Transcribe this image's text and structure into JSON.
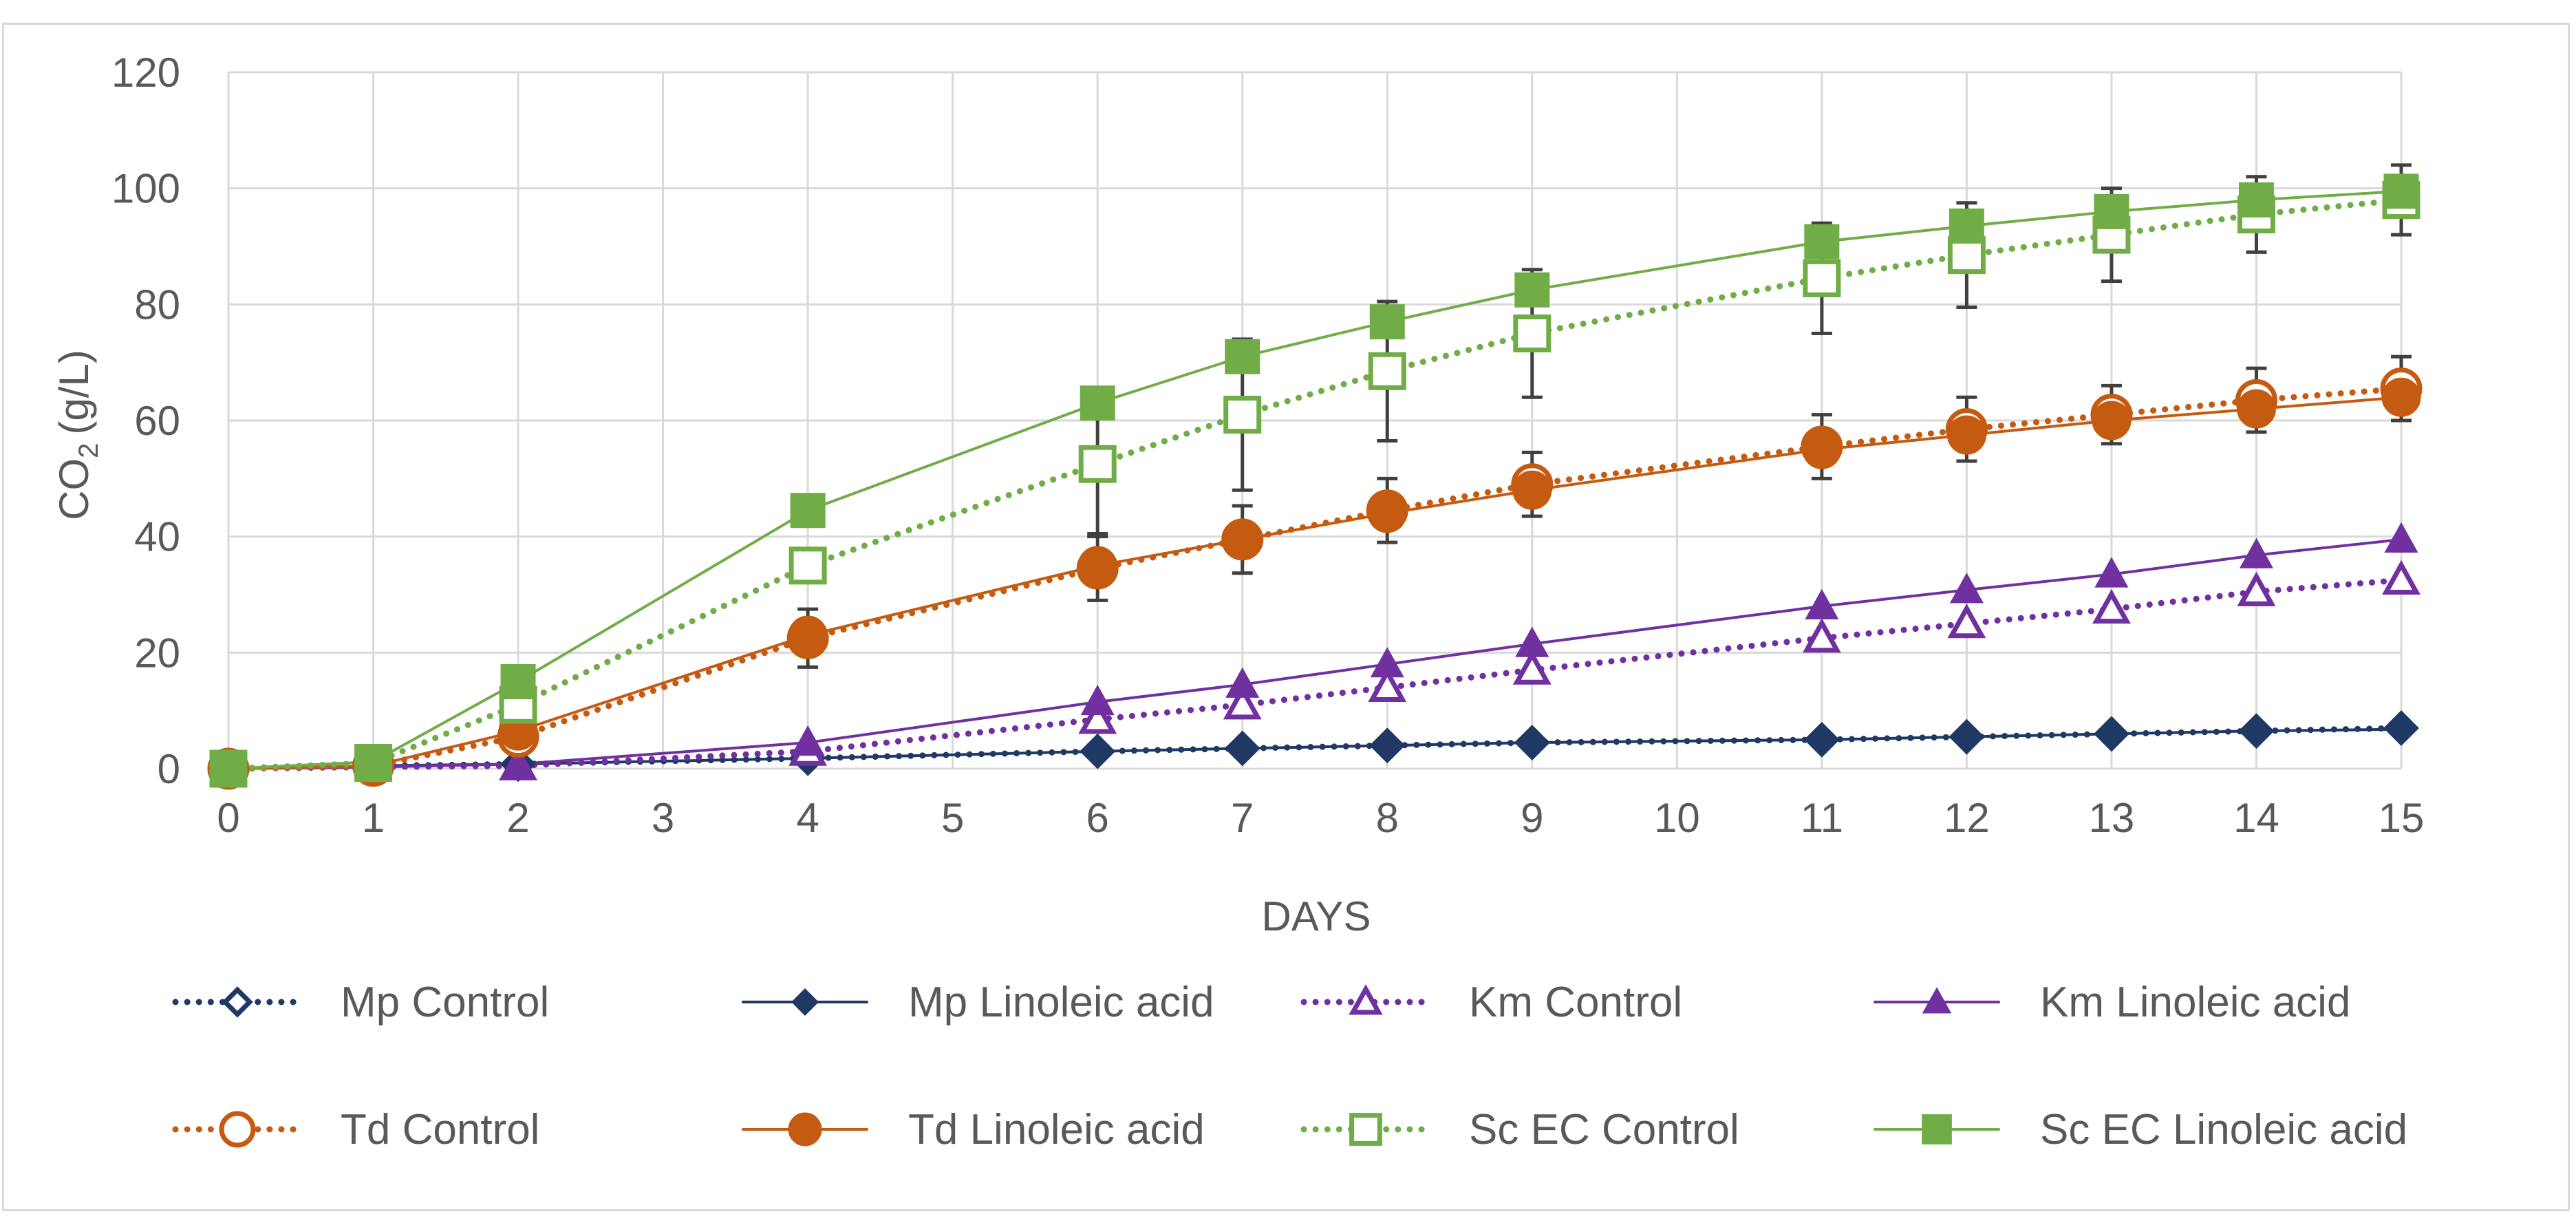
{
  "chart_data": {
    "type": "line",
    "title": "",
    "xlabel": "DAYS",
    "ylabel_main": "CO",
    "ylabel_sub": "2",
    "ylabel_units": "(g/L)",
    "xlim": [
      0,
      15
    ],
    "ylim": [
      0,
      120
    ],
    "x_ticks": [
      0,
      1,
      2,
      3,
      4,
      5,
      6,
      7,
      8,
      9,
      10,
      11,
      12,
      13,
      14,
      15
    ],
    "y_ticks": [
      0,
      20,
      40,
      60,
      80,
      100,
      120
    ],
    "grid": true,
    "legend_position": "bottom",
    "x": [
      0,
      1,
      2,
      4,
      6,
      7,
      8,
      9,
      11,
      12,
      13,
      14,
      15
    ],
    "series": [
      {
        "name": "Mp Control",
        "color": "#1f3864",
        "line": "dotted",
        "marker": "diamond-open",
        "values": [
          0,
          0.5,
          0.8,
          1.8,
          3.0,
          3.5,
          4.0,
          4.5,
          5.0,
          5.5,
          6.0,
          6.5,
          7.0
        ],
        "errors": [
          0,
          0,
          0,
          0,
          0,
          0,
          0,
          0,
          0,
          0,
          0,
          0,
          0
        ]
      },
      {
        "name": "Mp Linoleic acid",
        "color": "#1f3864",
        "line": "solid",
        "marker": "diamond",
        "values": [
          0,
          0.5,
          0.8,
          1.8,
          3.0,
          3.5,
          4.0,
          4.5,
          5.0,
          5.5,
          6.0,
          6.5,
          6.8
        ],
        "errors": [
          0,
          0,
          0,
          0,
          0,
          0,
          0,
          0,
          0,
          0,
          0,
          0,
          0
        ]
      },
      {
        "name": "Km Control",
        "color": "#7030a0",
        "line": "dotted",
        "marker": "triangle-open",
        "values": [
          0,
          0.3,
          0.5,
          3.0,
          8.5,
          11.0,
          14.0,
          17.0,
          22.5,
          25.0,
          27.5,
          30.5,
          32.5
        ],
        "errors": [
          0,
          0,
          0,
          0,
          0,
          0,
          0,
          0,
          0,
          0,
          0,
          0,
          0
        ]
      },
      {
        "name": "Km Linoleic acid",
        "color": "#7030a0",
        "line": "solid",
        "marker": "triangle",
        "values": [
          0,
          0.3,
          0.8,
          4.5,
          11.5,
          14.5,
          18.0,
          21.5,
          28.0,
          30.8,
          33.5,
          36.8,
          39.5
        ],
        "errors": [
          0,
          0,
          0,
          0,
          0,
          0,
          0,
          0,
          0,
          0,
          0,
          0,
          0
        ]
      },
      {
        "name": "Td Control",
        "color": "#c55a11",
        "line": "dotted",
        "marker": "circle-open",
        "values": [
          0,
          0.5,
          5.5,
          22.5,
          34.5,
          39.5,
          44.5,
          49.0,
          55.5,
          58.5,
          61.0,
          63.5,
          65.5
        ],
        "errors": [
          0,
          0,
          0,
          5.0,
          5.5,
          5.8,
          5.5,
          5.5,
          5.5,
          5.5,
          5.0,
          5.5,
          5.5
        ]
      },
      {
        "name": "Td Linoleic acid",
        "color": "#c55a11",
        "line": "solid",
        "marker": "circle",
        "values": [
          0,
          0.5,
          6.5,
          23.0,
          35.0,
          39.5,
          44.0,
          48.0,
          55.0,
          57.5,
          60.0,
          62.0,
          64.0
        ],
        "errors": [
          0,
          0,
          0,
          0,
          0,
          0,
          0,
          0,
          0,
          0,
          0,
          0,
          0
        ]
      },
      {
        "name": "Sc EC Control",
        "color": "#70ad47",
        "line": "dotted",
        "marker": "square-open",
        "values": [
          0,
          1.0,
          11.0,
          35.0,
          52.5,
          61.0,
          68.5,
          75.0,
          84.5,
          88.5,
          92.0,
          95.5,
          98.0
        ],
        "errors": [
          0,
          0,
          0,
          0,
          12.0,
          13.0,
          12.0,
          11.0,
          9.5,
          9.0,
          8.0,
          6.5,
          6.0
        ]
      },
      {
        "name": "Sc EC Linoleic acid",
        "color": "#70ad47",
        "line": "solid",
        "marker": "square",
        "values": [
          0,
          1.2,
          15.0,
          44.5,
          63.0,
          71.0,
          77.0,
          82.5,
          90.8,
          93.5,
          96.0,
          98.0,
          99.5
        ],
        "errors": [
          0,
          0,
          0,
          0,
          0,
          0,
          0,
          0,
          0,
          0,
          0,
          0,
          0
        ]
      }
    ]
  }
}
